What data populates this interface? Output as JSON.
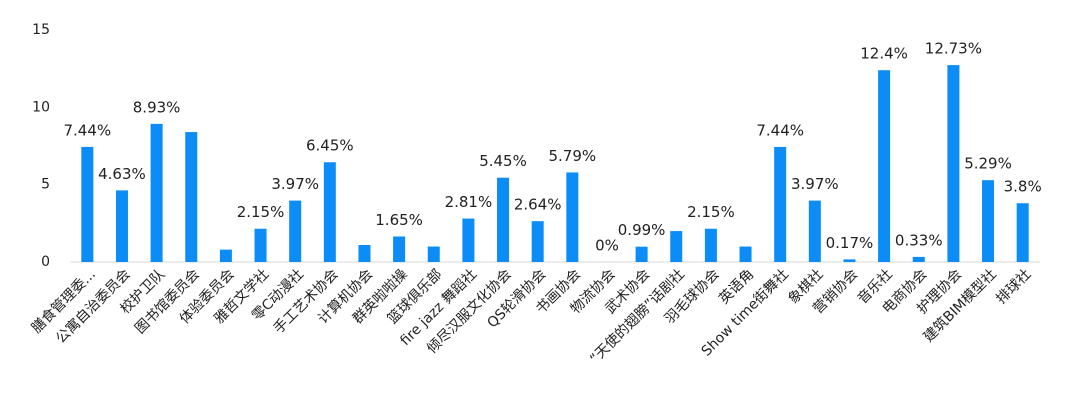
{
  "chart_data": {
    "type": "bar",
    "categories": [
      "膳食管理委...",
      "公寓自治委员会",
      "校护卫队",
      "图书馆委员会",
      "体验委员会",
      "雅哲文学社",
      "零C动漫社",
      "手工艺术协会",
      "计算机协会",
      "群英啦啦操",
      "篮球俱乐部",
      "fire jazz 舞蹈社",
      "倾尽汉服文化协会",
      "QS轮滑协会",
      "书画协会",
      "物流协会",
      "武术协会",
      "“天使的翅膀”话剧社",
      "羽毛球协会",
      "英语角",
      "Show time街舞社",
      "象棋社",
      "营销协会",
      "音乐社",
      "电商协会",
      "护理协会",
      "建筑BIM模型社",
      "排球社"
    ],
    "values": [
      7.44,
      4.63,
      8.93,
      8.4,
      0.8,
      2.15,
      3.97,
      6.45,
      1.1,
      1.65,
      1.0,
      2.81,
      5.45,
      2.64,
      5.79,
      0,
      0.99,
      2.0,
      2.15,
      1.0,
      7.44,
      3.97,
      0.17,
      12.4,
      0.33,
      12.73,
      5.29,
      3.8
    ],
    "value_labels": [
      "7.44%",
      "4.63%",
      "8.93%",
      null,
      null,
      "2.15%",
      "3.97%",
      "6.45%",
      null,
      "1.65%",
      null,
      "2.81%",
      "5.45%",
      "2.64%",
      "5.79%",
      "0%",
      "0.99%",
      null,
      "2.15%",
      null,
      "7.44%",
      "3.97%",
      "0.17%",
      "12.4%",
      "0.33%",
      "12.73%",
      "5.29%",
      "3.8%"
    ],
    "color": "#0b8cf7",
    "ylim": [
      0,
      15
    ],
    "yticks": [
      0,
      5,
      10,
      15
    ],
    "grid": false
  }
}
